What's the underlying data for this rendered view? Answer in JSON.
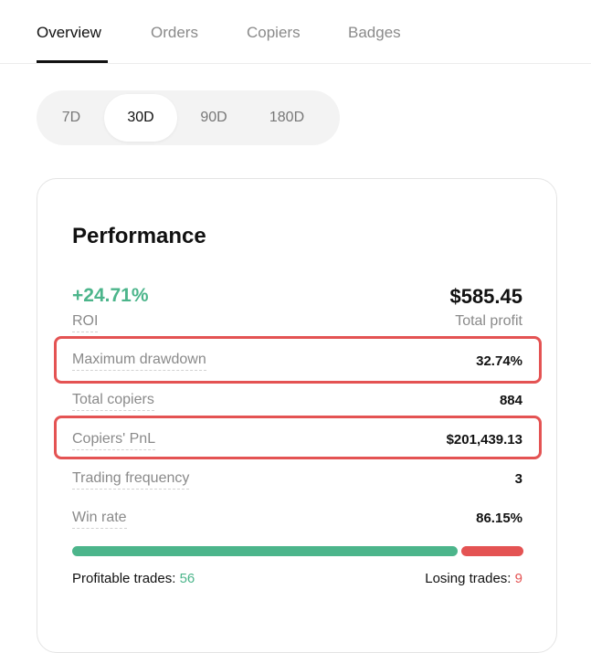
{
  "tabs": [
    {
      "label": "Overview",
      "active": true
    },
    {
      "label": "Orders",
      "active": false
    },
    {
      "label": "Copiers",
      "active": false
    },
    {
      "label": "Badges",
      "active": false
    }
  ],
  "period_selector": {
    "options": [
      "7D",
      "30D",
      "90D",
      "180D"
    ],
    "selected": "30D"
  },
  "performance": {
    "title": "Performance",
    "roi": {
      "value": "+24.71%",
      "label": "ROI"
    },
    "total_profit": {
      "value": "$585.45",
      "label": "Total profit"
    },
    "metrics": [
      {
        "label": "Maximum drawdown",
        "value": "32.74%",
        "highlighted": true
      },
      {
        "label": "Total copiers",
        "value": "884",
        "highlighted": false
      },
      {
        "label": "Copiers' PnL",
        "value": "$201,439.13",
        "highlighted": true
      },
      {
        "label": "Trading frequency",
        "value": "3",
        "highlighted": false
      },
      {
        "label": "Win rate",
        "value": "86.15%",
        "highlighted": false
      }
    ],
    "win_rate_fraction": 0.8615,
    "profitable_trades": {
      "label": "Profitable trades:",
      "value": "56"
    },
    "losing_trades": {
      "label": "Losing trades:",
      "value": "9"
    }
  },
  "colors": {
    "positive": "#4cb58b",
    "negative": "#e45353",
    "highlight_border": "#e45353"
  }
}
